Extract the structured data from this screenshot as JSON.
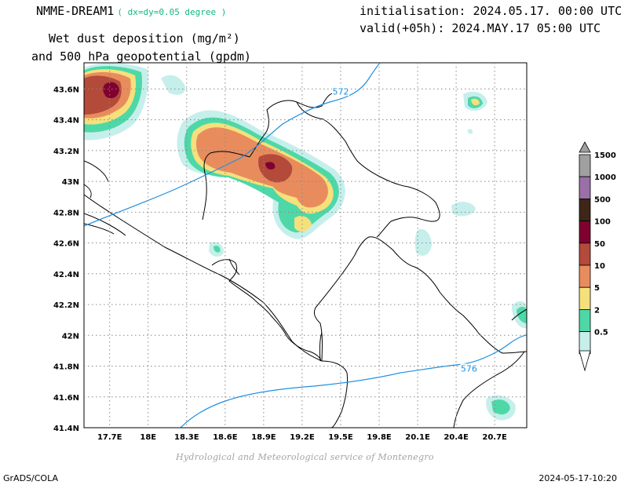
{
  "header": {
    "model_name": "NMME-DREAM1",
    "resolution": "( dx=dy=0.05 degree )",
    "variable_line1": "Wet dust deposition (mg/m²)",
    "variable_line2": "and 500 hPa geopotential (gpdm)",
    "initialisation": "initialisation: 2024.05.17. 00:00 UTC",
    "valid": "valid(+05h): 2024.MAY.17 05:00 UTC"
  },
  "map": {
    "lat_labels": [
      "43.6N",
      "43.4N",
      "43.2N",
      "43N",
      "42.8N",
      "42.6N",
      "42.4N",
      "42.2N",
      "42N",
      "41.8N",
      "41.6N",
      "41.4N"
    ],
    "lon_labels": [
      "17.7E",
      "18E",
      "18.3E",
      "18.6E",
      "18.9E",
      "19.2E",
      "19.5E",
      "19.8E",
      "20.1E",
      "20.4E",
      "20.7E"
    ],
    "contour_labels": [
      {
        "text": "572",
        "lon": 19.5,
        "lat": 43.58
      },
      {
        "text": "576",
        "lon": 20.5,
        "lat": 41.78
      }
    ],
    "contour_color": "#1e90e0"
  },
  "legend": {
    "levels": [
      {
        "label": "1500",
        "color": "#a0a0a0"
      },
      {
        "label": "1000",
        "color": "#9a70a8"
      },
      {
        "label": "500",
        "color": "#3e2718"
      },
      {
        "label": "100",
        "color": "#800030"
      },
      {
        "label": "50",
        "color": "#b34a3a"
      },
      {
        "label": "10",
        "color": "#e88c5e"
      },
      {
        "label": "5",
        "color": "#f5e07c"
      },
      {
        "label": "2",
        "color": "#4ed8a8"
      },
      {
        "label": "0.5",
        "color": "#c6efec"
      }
    ]
  },
  "footer": {
    "credit": "Hydrological and Meteorological service of Montenegro",
    "software": "GrADS/COLA",
    "timestamp": "2024-05-17-10:20"
  }
}
